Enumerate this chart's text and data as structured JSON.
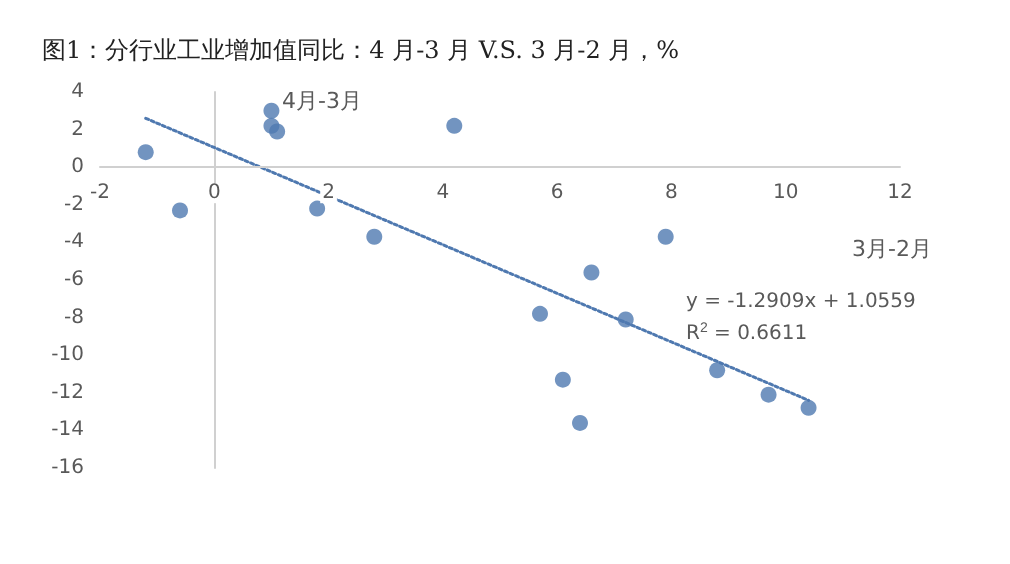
{
  "chart_data": {
    "type": "scatter",
    "title": "图1：分行业工业增加值同比：4 月-3 月 V.S. 3 月-2 月，%",
    "xlabel": "3月-2月",
    "ylabel": "4月-3月",
    "annotations": [
      "y = -1.2909x + 1.0559",
      "R$^{2}$ = 0.6611"
    ],
    "xlim": [
      -2,
      12
    ],
    "xticks": [
      -2,
      0,
      2,
      4,
      6,
      8,
      10,
      12
    ],
    "ylim": [
      -16,
      4
    ],
    "yticks": [
      -16,
      -14,
      -12,
      -10,
      -8,
      -6,
      -4,
      -2,
      0,
      2,
      4
    ],
    "marker": "circle",
    "series": [
      {
        "type": "scatter",
        "color": "#4f79b0",
        "x": [
          -1.2,
          -0.6,
          1.0,
          1.0,
          1.1,
          1.8,
          2.8,
          4.2,
          6.6,
          7.9,
          5.7,
          7.2,
          6.1,
          6.4,
          8.8,
          9.7,
          10.4
        ],
        "values": [
          0.8,
          -2.3,
          3.0,
          2.2,
          1.9,
          -2.2,
          -3.7,
          2.2,
          -5.6,
          -3.7,
          -7.8,
          -8.1,
          -11.3,
          -13.6,
          -10.8,
          -12.1,
          -12.8
        ]
      },
      {
        "type": "line",
        "color": "#4f79b0",
        "line_style": "dotted",
        "marker": "none",
        "x": [
          -1.2,
          10.4
        ],
        "values": [
          2.6,
          -12.4
        ]
      }
    ]
  }
}
